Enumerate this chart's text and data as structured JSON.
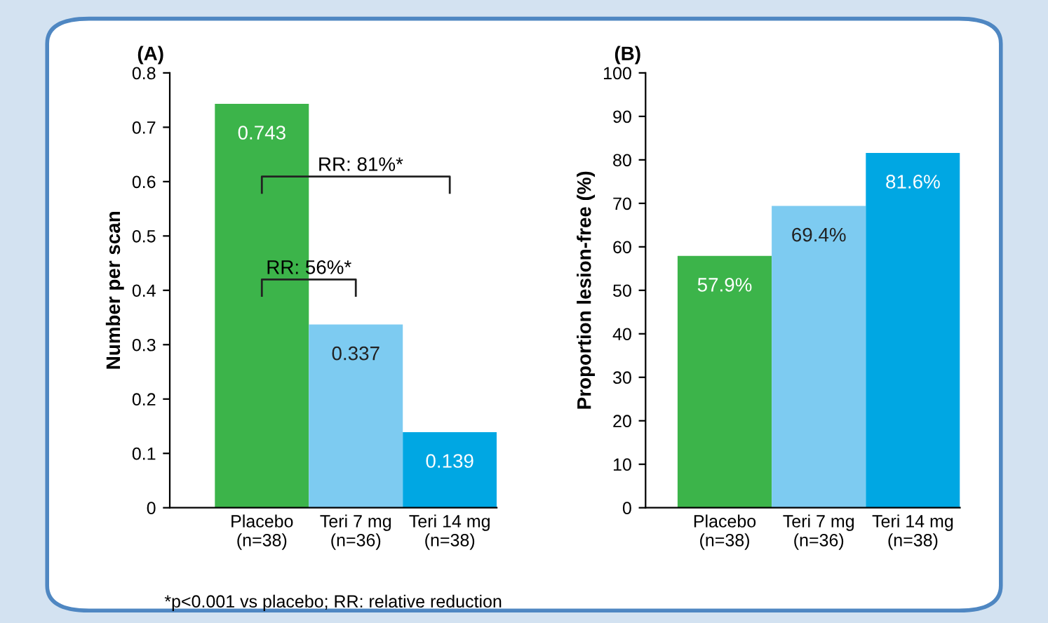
{
  "chart_data": [
    {
      "type": "bar",
      "title": "(A)",
      "ylabel": "Number per scan",
      "categories": [
        "Placebo\n(n=38)",
        "Teri 7 mg\n(n=36)",
        "Teri 14 mg\n(n=38)"
      ],
      "values": [
        0.743,
        0.337,
        0.139
      ],
      "colors": [
        "#3cb44a",
        "#7dcbf1",
        "#00a7e3"
      ],
      "ylim": [
        0,
        0.8
      ],
      "yticks": [
        0,
        0.1,
        0.2,
        0.3,
        0.4,
        0.5,
        0.6,
        0.7,
        0.8
      ],
      "data_labels": true,
      "grid": false,
      "legend": false,
      "annotations": [
        "RR: 81%*",
        "RR: 56%*",
        "*p<0.001 vs placebo; RR: relative reduction"
      ]
    },
    {
      "type": "bar",
      "title": "(B)",
      "ylabel": "Proportion lesion-free (%)",
      "categories": [
        "Placebo\n(n=38)",
        "Teri 7 mg\n(n=36)",
        "Teri 14 mg\n(n=38)"
      ],
      "values": [
        57.9,
        69.4,
        81.6
      ],
      "colors": [
        "#3cb44a",
        "#7dcbf1",
        "#00a7e3"
      ],
      "value_labels": [
        "57.9%",
        "69.4%",
        "81.6%"
      ],
      "ylim": [
        0,
        100
      ],
      "yticks": [
        0,
        10,
        20,
        30,
        40,
        50,
        60,
        70,
        80,
        90,
        100
      ],
      "grid": false,
      "legend": false
    }
  ]
}
